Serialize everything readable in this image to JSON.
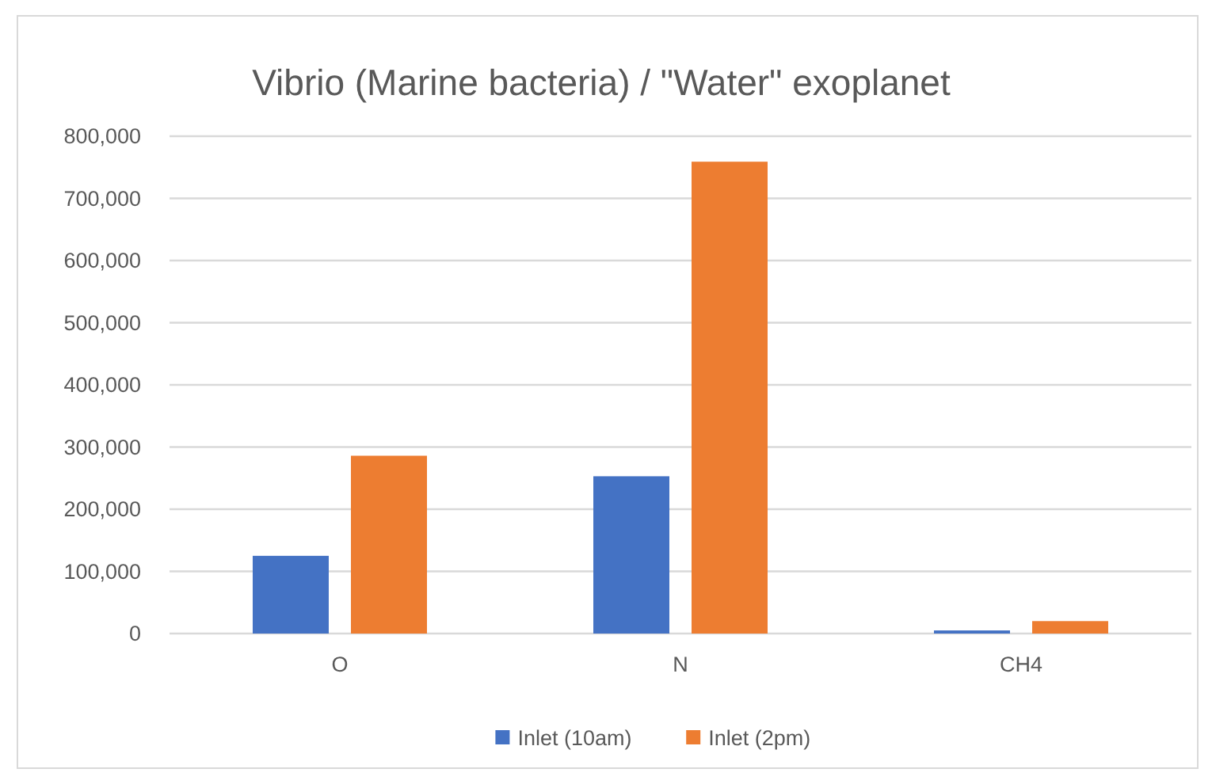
{
  "chart_data": {
    "type": "bar",
    "title": "Vibrio (Marine bacteria) / \"Water\" exoplanet",
    "categories": [
      "O",
      "N",
      "CH4"
    ],
    "series": [
      {
        "name": "Inlet (10am)",
        "color": "#4472c4",
        "values": [
          125000,
          253000,
          5000
        ]
      },
      {
        "name": "Inlet (2pm)",
        "color": "#ed7d31",
        "values": [
          286000,
          759000,
          20000
        ]
      }
    ],
    "ylim": [
      0,
      800000
    ],
    "yticks": [
      {
        "value": 0,
        "label": "0"
      },
      {
        "value": 100000,
        "label": "100,000"
      },
      {
        "value": 200000,
        "label": "200,000"
      },
      {
        "value": 300000,
        "label": "300,000"
      },
      {
        "value": 400000,
        "label": "400,000"
      },
      {
        "value": 500000,
        "label": "500,000"
      },
      {
        "value": 600000,
        "label": "600,000"
      },
      {
        "value": 700000,
        "label": "700,000"
      },
      {
        "value": 800000,
        "label": "800,000"
      }
    ],
    "grid": "y",
    "legend": "bottom"
  }
}
